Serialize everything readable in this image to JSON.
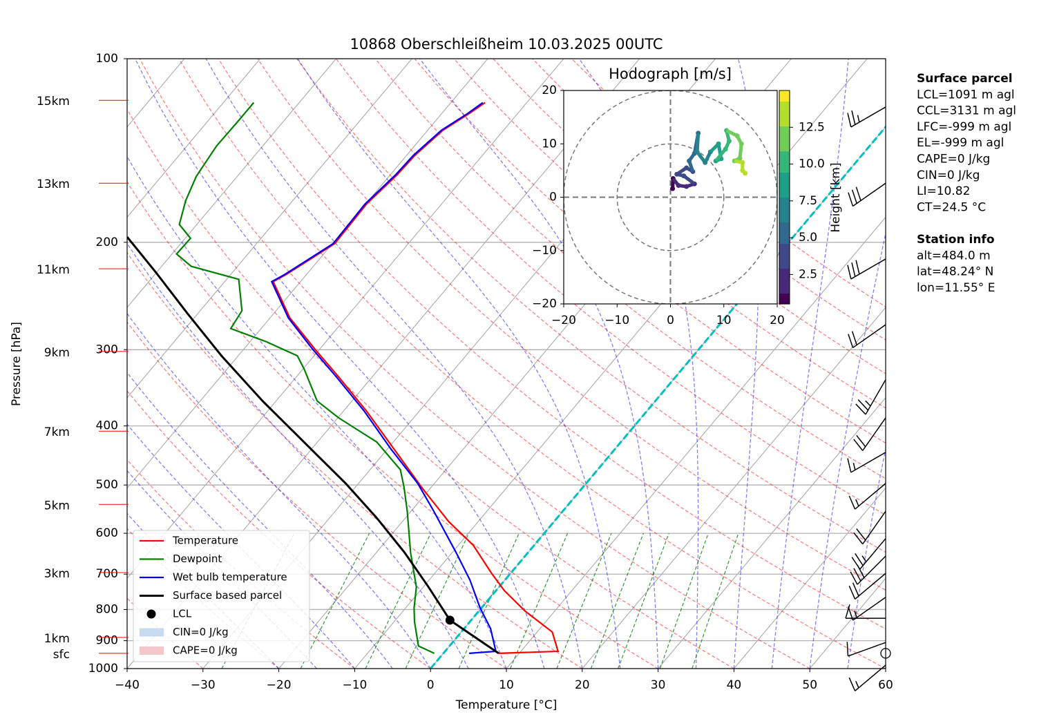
{
  "chart_data": [
    {
      "type": "skewt",
      "title": "10868 Oberschleißheim 10.03.2025 00UTC",
      "x_label": "Temperature [°C]",
      "y_label": "Pressure [hPa]",
      "xlim": [
        -40,
        60
      ],
      "ylim": [
        1000,
        100
      ],
      "log_y": true,
      "grid": true,
      "xticks": [
        {
          "value": -40,
          "label": "−40"
        },
        {
          "value": -30,
          "label": "−30"
        },
        {
          "value": -20,
          "label": "−20"
        },
        {
          "value": -10,
          "label": "−10"
        },
        0,
        10,
        20,
        30,
        40,
        50,
        60
      ],
      "yticks": [
        100,
        200,
        300,
        400,
        500,
        600,
        700,
        800,
        900,
        1000
      ],
      "series": [
        {
          "name": "Temperature",
          "color": "#ff0000",
          "pressure": [
            944,
            937,
            871,
            805,
            745,
            698,
            628,
            574,
            504,
            436,
            378,
            332,
            299,
            266,
            232,
            226,
            201,
            173,
            155,
            144,
            131,
            123,
            118
          ],
          "values": [
            7.3,
            14.9,
            12.0,
            6.1,
            1.1,
            -2.5,
            -8.0,
            -13.9,
            -21.3,
            -29.2,
            -37.0,
            -44.5,
            -50.7,
            -57.4,
            -63.6,
            -62.7,
            -59.7,
            -59.9,
            -59.1,
            -58.9,
            -58.0,
            -56.4,
            -55.5
          ]
        },
        {
          "name": "Dewpoint",
          "color": "#008000",
          "pressure": [
            944,
            918,
            838,
            795,
            735,
            645,
            552,
            504,
            472,
            425,
            388,
            364,
            323,
            307,
            291,
            277,
            259,
            230,
            219,
            209,
            197,
            187,
            171,
            156,
            139,
            126,
            118
          ],
          "values": [
            -1.2,
            -4.1,
            -7.3,
            -8.9,
            -10.9,
            -15.5,
            -20.5,
            -23.6,
            -26.0,
            -32.2,
            -39.9,
            -44.6,
            -49.8,
            -52.2,
            -57.9,
            -64.0,
            -64.5,
            -68.4,
            -76.1,
            -79.4,
            -79.3,
            -82.3,
            -84.1,
            -85.4,
            -86.1,
            -86.0,
            -86.0
          ]
        },
        {
          "name": "Wet bulb temperature",
          "color": "#0000ff",
          "pressure": [
            944,
            937,
            860,
            795,
            716,
            645,
            552,
            497,
            436,
            378,
            332,
            299,
            266,
            232,
            226,
            201,
            173,
            155,
            144,
            131,
            123,
            118
          ],
          "values": [
            3.4,
            6.7,
            3.5,
            -0.2,
            -4.6,
            -9.5,
            -17.0,
            -22.2,
            -29.6,
            -37.3,
            -44.8,
            -51.0,
            -57.6,
            -63.8,
            -62.9,
            -59.9,
            -60.1,
            -59.3,
            -59.1,
            -58.2,
            -56.6,
            -55.8
          ]
        },
        {
          "name": "Surface based parcel",
          "color": "#000000",
          "pressure": [
            944,
            833,
            735,
            645,
            566,
            497,
            425,
            364,
            307,
            262,
            224,
            196
          ],
          "values": [
            7.3,
            -2.8,
            -9.3,
            -16.3,
            -23.8,
            -31.7,
            -41.8,
            -51.8,
            -62.2,
            -71.3,
            -80.1,
            -87.8
          ]
        }
      ],
      "lcl": {
        "name": "LCL",
        "pressure": 833,
        "temperature": -2.8,
        "color": "#000000"
      },
      "shading": [
        {
          "label": "CIN=0 J/kg",
          "color": "#c6dbef"
        },
        {
          "label": "CAPE=0 J/kg",
          "color": "#f6c7ca"
        }
      ],
      "height_labels": {
        "labels": [
          "15km",
          "13km",
          "11km",
          "9km",
          "7km",
          "5km",
          "3km",
          "1km",
          "sfc"
        ],
        "pressure": [
          117,
          160,
          221,
          302,
          408,
          538,
          696,
          889,
          944
        ],
        "color": "#ff0000"
      },
      "winds": {
        "pressure": [
          120,
          160,
          213,
          273,
          336,
          388,
          442,
          497,
          552,
          612,
          654,
          698,
          764,
          827,
          906,
          944,
          987
        ],
        "speed": [
          25,
          30,
          30,
          20,
          25,
          20,
          15,
          15,
          20,
          25,
          30,
          20,
          15,
          10,
          10,
          0,
          15
        ],
        "direction": [
          240,
          235,
          240,
          235,
          210,
          215,
          240,
          230,
          215,
          220,
          225,
          230,
          235,
          270,
          250,
          0,
          230
        ]
      },
      "text_panels": [
        {
          "title": "Surface parcel",
          "lines": [
            "LCL=1091 m agl",
            "CCL=3131 m agl",
            "LFC=-999 m agl",
            "EL=-999 m agl",
            "CAPE=0 J/kg",
            "CIN=0 J/kg",
            "LI=10.82",
            "CT=24.5 °C"
          ]
        },
        {
          "title": "Station info",
          "lines": [
            "alt=484.0 m",
            "lat=48.24° N",
            "lon=11.55° E"
          ]
        }
      ]
    },
    {
      "type": "hodograph",
      "title": "Hodograph [m/s]",
      "xlim": [
        -20,
        20
      ],
      "ylim": [
        -20,
        20
      ],
      "xticks": [
        {
          "value": -20,
          "label": "−20"
        },
        {
          "value": -10,
          "label": "−10"
        },
        0,
        10,
        20
      ],
      "yticks": [
        {
          "value": -20,
          "label": "−20"
        },
        {
          "value": -10,
          "label": "−10"
        },
        0,
        10,
        20
      ],
      "u": [
        0.4,
        0.5,
        1.5,
        3.0,
        4.5,
        2.5,
        1.2,
        3.0,
        4.2,
        3.5,
        4.5,
        5.2,
        5.0,
        6.5,
        7.5,
        9.0,
        9.5,
        8.5,
        10.3,
        11.0,
        10.5,
        12.5,
        13.3,
        13.0,
        12.0,
        13.5,
        13.5,
        14.0
      ],
      "v": [
        1.6,
        3.5,
        2.2,
        2.0,
        2.5,
        4.0,
        4.3,
        5.5,
        4.8,
        6.8,
        8.2,
        12.0,
        8.5,
        6.5,
        8.5,
        10.0,
        7.2,
        6.8,
        9.0,
        10.5,
        12.5,
        11.5,
        10.0,
        7.3,
        6.8,
        6.5,
        5.0,
        4.5
      ],
      "height": [
        0.6,
        1.0,
        1.5,
        2.0,
        2.5,
        3.0,
        3.5,
        4.0,
        4.5,
        5.0,
        5.5,
        6.0,
        6.5,
        7.0,
        7.5,
        8.0,
        8.5,
        9.0,
        9.5,
        10.0,
        10.5,
        11.0,
        11.5,
        12.0,
        12.5,
        13.0,
        13.5,
        14.0
      ],
      "colorbar": {
        "label": "Height [km]",
        "lim": [
          0.5,
          15
        ],
        "ticks": [
          2.5,
          {
            "value": 5,
            "label": "5.0"
          },
          7.5,
          {
            "value": 10,
            "label": "10.0"
          },
          12.5
        ],
        "colormap": "viridis"
      }
    }
  ]
}
